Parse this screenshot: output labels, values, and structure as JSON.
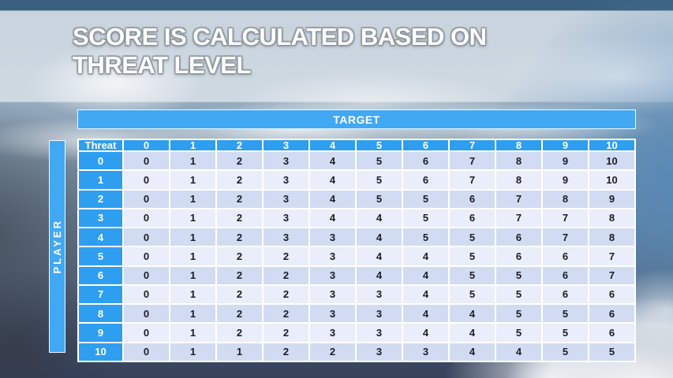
{
  "slide": {
    "title": "SCORE IS CALCULATED BASED ON THREAT LEVEL",
    "title_line1": "SCORE IS CALCULATED BASED ON",
    "title_line2": "THREAT LEVEL"
  },
  "matrix": {
    "target_label": "TARGET",
    "player_label": "PLAYER",
    "corner_label": "Threat",
    "column_headers": [
      "0",
      "1",
      "2",
      "3",
      "4",
      "5",
      "6",
      "7",
      "8",
      "9",
      "10"
    ],
    "rows": [
      {
        "threat": "0",
        "scores": [
          0,
          1,
          2,
          3,
          4,
          5,
          6,
          7,
          8,
          9,
          10
        ]
      },
      {
        "threat": "1",
        "scores": [
          0,
          1,
          2,
          3,
          4,
          5,
          6,
          7,
          8,
          9,
          10
        ]
      },
      {
        "threat": "2",
        "scores": [
          0,
          1,
          2,
          3,
          4,
          5,
          5,
          6,
          7,
          8,
          9
        ]
      },
      {
        "threat": "3",
        "scores": [
          0,
          1,
          2,
          3,
          4,
          4,
          5,
          6,
          7,
          7,
          8
        ]
      },
      {
        "threat": "4",
        "scores": [
          0,
          1,
          2,
          3,
          3,
          4,
          5,
          5,
          6,
          7,
          8
        ]
      },
      {
        "threat": "5",
        "scores": [
          0,
          1,
          2,
          2,
          3,
          4,
          4,
          5,
          6,
          6,
          7
        ]
      },
      {
        "threat": "6",
        "scores": [
          0,
          1,
          2,
          2,
          3,
          4,
          4,
          5,
          5,
          6,
          7
        ]
      },
      {
        "threat": "7",
        "scores": [
          0,
          1,
          2,
          2,
          3,
          3,
          4,
          5,
          5,
          6,
          6
        ]
      },
      {
        "threat": "8",
        "scores": [
          0,
          1,
          2,
          2,
          3,
          3,
          4,
          4,
          5,
          5,
          6
        ]
      },
      {
        "threat": "9",
        "scores": [
          0,
          1,
          2,
          2,
          3,
          3,
          4,
          4,
          5,
          5,
          6
        ]
      },
      {
        "threat": "10",
        "scores": [
          0,
          1,
          1,
          2,
          2,
          3,
          3,
          4,
          4,
          5,
          5
        ]
      }
    ]
  },
  "colors": {
    "header_blue": "#2E9EF0",
    "bar_blue": "#41A8F3",
    "band_dark": "#D1DCF2",
    "band_light": "#EAEEFA"
  }
}
